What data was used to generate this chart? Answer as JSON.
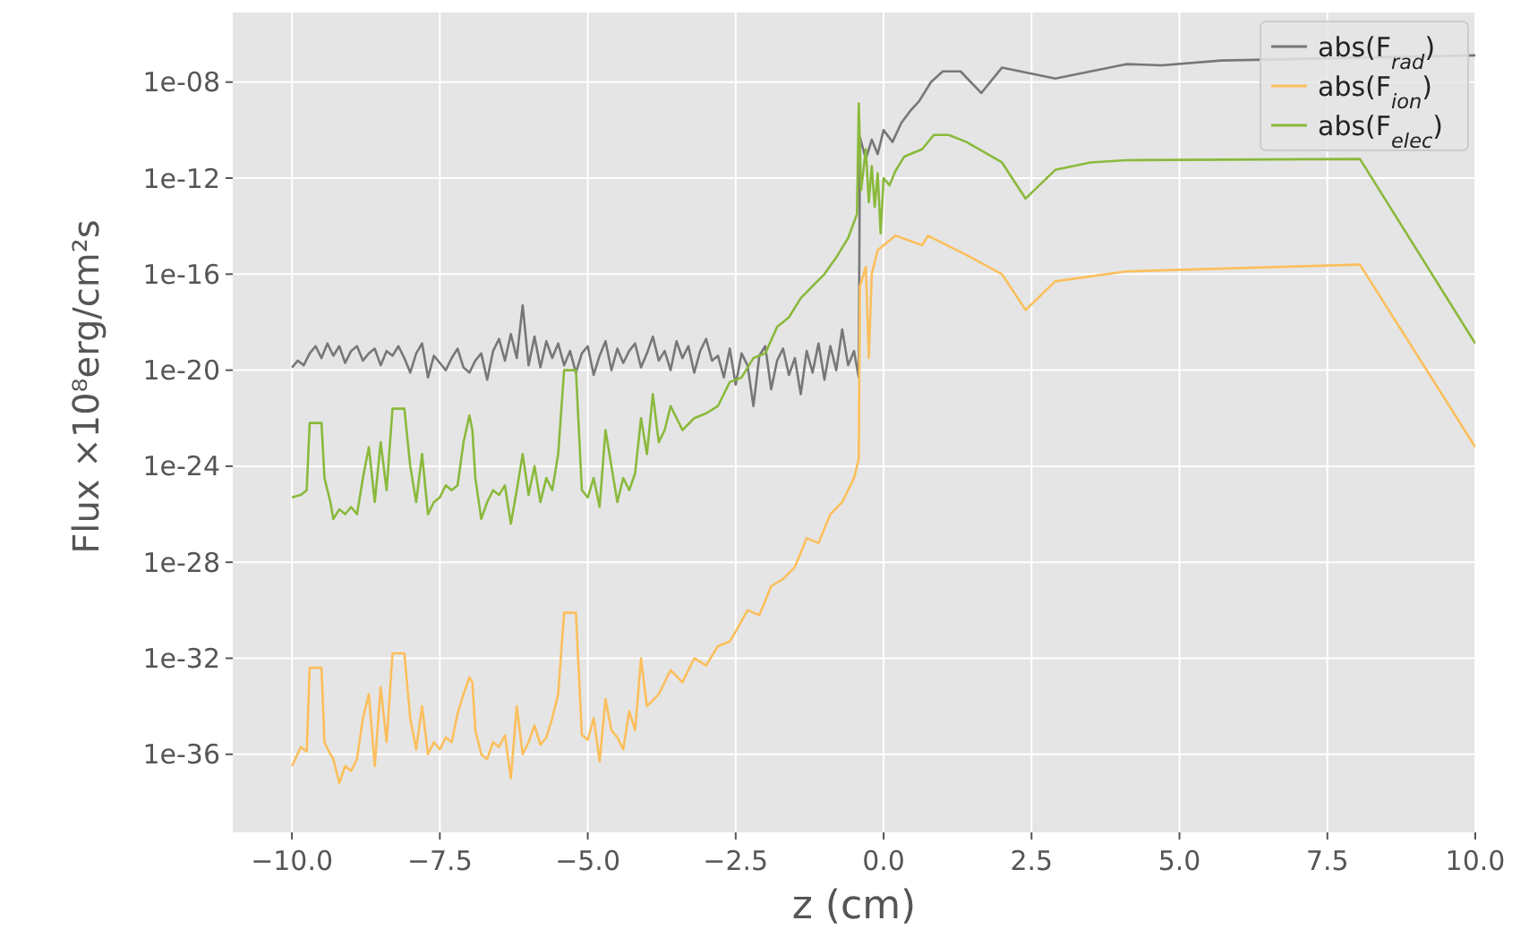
{
  "chart_data": {
    "type": "line",
    "xlabel": "z (cm)",
    "ylabel": "Flux ×10⁸erg/cm²s",
    "log": "y",
    "grid": true,
    "legend": "top right",
    "xlim": [
      -11,
      10
    ],
    "xticks": [
      {
        "value": -10,
        "label": "−10.0"
      },
      {
        "value": -7.5,
        "label": "−7.5"
      },
      {
        "value": -5,
        "label": "−5.0"
      },
      {
        "value": -2.5,
        "label": "−2.5"
      },
      {
        "value": 0,
        "label": "0.0"
      },
      {
        "value": 2.5,
        "label": "2.5"
      },
      {
        "value": 5,
        "label": "5.0"
      },
      {
        "value": 7.5,
        "label": "7.5"
      },
      {
        "value": 10,
        "label": "10.0"
      }
    ],
    "ylim": [
      5.6e-40,
      7.9e-06
    ],
    "yticks": [
      {
        "value": 1e-36,
        "label": "1e-36"
      },
      {
        "value": 1e-32,
        "label": "1e-32"
      },
      {
        "value": 1e-28,
        "label": "1e-28"
      },
      {
        "value": 1e-24,
        "label": "1e-24"
      },
      {
        "value": 1e-20,
        "label": "1e-20"
      },
      {
        "value": 1e-16,
        "label": "1e-16"
      },
      {
        "value": 1e-12,
        "label": "1e-12"
      },
      {
        "value": 1e-08,
        "label": "1e-08"
      }
    ],
    "series": [
      {
        "name": "abs(F$_{rad}$)",
        "color": "#777777",
        "x": [
          -10,
          -9.9,
          -9.8,
          -9.7,
          -9.6,
          -9.5,
          -9.4,
          -9.3,
          -9.2,
          -9.1,
          -9.0,
          -8.9,
          -8.8,
          -8.7,
          -8.6,
          -8.5,
          -8.4,
          -8.3,
          -8.2,
          -8.1,
          -8.0,
          -7.9,
          -7.8,
          -7.7,
          -7.6,
          -7.5,
          -7.4,
          -7.3,
          -7.2,
          -7.1,
          -7.0,
          -6.9,
          -6.8,
          -6.7,
          -6.6,
          -6.5,
          -6.4,
          -6.3,
          -6.2,
          -6.1,
          -6.0,
          -5.9,
          -5.8,
          -5.7,
          -5.6,
          -5.5,
          -5.4,
          -5.3,
          -5.2,
          -5.1,
          -5.0,
          -4.9,
          -4.8,
          -4.7,
          -4.6,
          -4.5,
          -4.4,
          -4.3,
          -4.2,
          -4.1,
          -4.0,
          -3.9,
          -3.8,
          -3.7,
          -3.6,
          -3.5,
          -3.4,
          -3.3,
          -3.2,
          -3.1,
          -3.0,
          -2.9,
          -2.8,
          -2.7,
          -2.6,
          -2.5,
          -2.4,
          -2.3,
          -2.2,
          -2.1,
          -2.0,
          -1.9,
          -1.8,
          -1.7,
          -1.6,
          -1.5,
          -1.4,
          -1.3,
          -1.2,
          -1.1,
          -1.0,
          -0.9,
          -0.8,
          -0.7,
          -0.6,
          -0.5,
          -0.42,
          -0.4,
          -0.3,
          -0.2,
          -0.1,
          0.0,
          0.15,
          0.3,
          0.45,
          0.6,
          0.8,
          1.0,
          1.3,
          1.65,
          2.0,
          2.9,
          4.1,
          4.7,
          5.7,
          10
        ],
        "values": [
          1.3e-20,
          2.5e-20,
          1.6e-20,
          5e-20,
          1e-19,
          3.2e-20,
          1.3e-19,
          4e-20,
          1e-19,
          2e-20,
          6.3e-20,
          1e-19,
          2.5e-20,
          5e-20,
          7.9e-20,
          1.6e-20,
          6.3e-20,
          4e-20,
          1e-19,
          3.2e-20,
          7.9e-21,
          5e-20,
          1.3e-19,
          5e-21,
          4e-20,
          2e-20,
          1e-20,
          3.2e-20,
          7.9e-20,
          1.3e-20,
          7.9e-21,
          2.5e-20,
          5e-20,
          4e-21,
          6.3e-20,
          2e-19,
          2.5e-20,
          3.2e-19,
          3.2e-20,
          5e-18,
          1.6e-20,
          2.5e-19,
          1.3e-20,
          1.6e-19,
          3.2e-20,
          1.3e-19,
          1.6e-20,
          6.3e-20,
          7.9e-21,
          5e-20,
          1e-19,
          6.3e-21,
          4e-20,
          1.6e-19,
          1e-20,
          7.9e-20,
          2e-20,
          6.3e-20,
          1.3e-19,
          1.3e-20,
          5e-20,
          2.5e-19,
          2.5e-20,
          6.3e-20,
          1e-20,
          1.6e-19,
          3.2e-20,
          1e-19,
          7.9e-21,
          6.3e-20,
          2e-19,
          2.5e-20,
          4e-20,
          5e-21,
          7.9e-20,
          2.5e-21,
          5e-20,
          1.6e-20,
          3.2e-22,
          4e-20,
          1e-19,
          1.6e-21,
          2.5e-20,
          7.9e-20,
          6.3e-21,
          3.2e-20,
          1e-21,
          6.3e-20,
          7.9e-21,
          1.3e-19,
          4e-21,
          1e-19,
          1e-20,
          5e-19,
          1.6e-20,
          6.3e-20,
          5e-21,
          5e-11,
          6.3e-12,
          4e-11,
          1e-11,
          1e-10,
          3.2e-11,
          2e-10,
          6.3e-10,
          1.6e-09,
          1e-08,
          2.8e-08,
          2.8e-08,
          3.5e-09,
          4e-08,
          1.4e-08,
          5.6e-08,
          5e-08,
          7.9e-08,
          1.3e-07
        ]
      },
      {
        "name": "abs(F$_{ion}$)",
        "color": "#fbbf5c",
        "x": [
          -10,
          -9.85,
          -9.75,
          -9.7,
          -9.5,
          -9.45,
          -9.35,
          -9.3,
          -9.2,
          -9.1,
          -9.0,
          -8.9,
          -8.8,
          -8.7,
          -8.6,
          -8.5,
          -8.4,
          -8.3,
          -8.1,
          -8.0,
          -7.9,
          -7.8,
          -7.7,
          -7.6,
          -7.5,
          -7.4,
          -7.3,
          -7.2,
          -7.1,
          -7.0,
          -6.95,
          -6.9,
          -6.8,
          -6.7,
          -6.6,
          -6.5,
          -6.4,
          -6.3,
          -6.2,
          -6.1,
          -6.0,
          -5.9,
          -5.8,
          -5.7,
          -5.6,
          -5.5,
          -5.4,
          -5.2,
          -5.1,
          -5.0,
          -4.9,
          -4.8,
          -4.7,
          -4.6,
          -4.5,
          -4.4,
          -4.3,
          -4.2,
          -4.1,
          -4.0,
          -3.8,
          -3.6,
          -3.4,
          -3.2,
          -3.0,
          -2.8,
          -2.6,
          -2.5,
          -2.3,
          -2.1,
          -1.9,
          -1.7,
          -1.5,
          -1.3,
          -1.1,
          -0.9,
          -0.7,
          -0.5,
          -0.42,
          -0.4,
          -0.3,
          -0.25,
          -0.2,
          -0.1,
          0.1,
          0.2,
          0.65,
          0.75,
          1.4,
          2.0,
          2.4,
          2.9,
          4.1,
          8.05,
          10
        ],
        "values": [
          3.2e-37,
          2e-36,
          1.3e-36,
          4e-33,
          4e-33,
          3.2e-36,
          1e-36,
          6.3e-37,
          6.3e-38,
          3.2e-37,
          2e-37,
          6.3e-37,
          3.2e-35,
          3.2e-34,
          3.2e-37,
          6.3e-34,
          3.2e-36,
          1.6e-32,
          1.6e-32,
          3.2e-35,
          1.6e-36,
          1e-34,
          1e-36,
          3.2e-36,
          1.6e-36,
          5e-36,
          3.2e-36,
          5e-35,
          3.2e-34,
          1.6e-33,
          1e-33,
          1e-35,
          1e-36,
          6.3e-37,
          3.2e-36,
          2e-36,
          6.3e-36,
          1e-37,
          1e-34,
          1e-36,
          3.2e-36,
          1.6e-35,
          2.5e-36,
          5e-36,
          3.2e-35,
          3.2e-34,
          7.9e-31,
          7.9e-31,
          6.3e-36,
          4e-36,
          3.2e-35,
          5e-37,
          2e-34,
          1e-35,
          5e-36,
          1.6e-36,
          6.3e-35,
          1e-35,
          1e-32,
          1e-34,
          3.2e-34,
          3.2e-33,
          1e-33,
          1e-32,
          5e-33,
          3.2e-32,
          5e-32,
          1.3e-31,
          1e-30,
          6.3e-31,
          1e-29,
          2e-29,
          6.3e-29,
          1e-27,
          6.3e-28,
          1e-26,
          3.2e-26,
          3.2e-25,
          2e-24,
          3.2e-17,
          2e-16,
          3.2e-20,
          1e-16,
          1e-15,
          2.5e-15,
          4e-15,
          1.6e-15,
          4e-15,
          6.3e-16,
          1e-16,
          3.2e-18,
          5e-17,
          1.3e-16,
          2.5e-16,
          6.3e-24
        ]
      },
      {
        "name": "abs(F$_{elec}$)",
        "color": "#8ab93c",
        "x": [
          -10,
          -9.85,
          -9.75,
          -9.7,
          -9.5,
          -9.45,
          -9.35,
          -9.3,
          -9.2,
          -9.1,
          -9.0,
          -8.9,
          -8.8,
          -8.7,
          -8.6,
          -8.5,
          -8.4,
          -8.3,
          -8.1,
          -8.0,
          -7.9,
          -7.8,
          -7.7,
          -7.6,
          -7.5,
          -7.4,
          -7.3,
          -7.2,
          -7.1,
          -7.0,
          -6.95,
          -6.9,
          -6.8,
          -6.7,
          -6.6,
          -6.5,
          -6.4,
          -6.3,
          -6.2,
          -6.1,
          -6.0,
          -5.9,
          -5.8,
          -5.7,
          -5.6,
          -5.5,
          -5.4,
          -5.2,
          -5.1,
          -5.0,
          -4.9,
          -4.8,
          -4.7,
          -4.6,
          -4.5,
          -4.4,
          -4.3,
          -4.2,
          -4.1,
          -4.0,
          -3.9,
          -3.8,
          -3.7,
          -3.6,
          -3.4,
          -3.2,
          -3.0,
          -2.8,
          -2.6,
          -2.4,
          -2.2,
          -2.0,
          -1.8,
          -1.6,
          -1.4,
          -1.2,
          -1.0,
          -0.8,
          -0.6,
          -0.45,
          -0.42,
          -0.38,
          -0.3,
          -0.25,
          -0.2,
          -0.15,
          -0.1,
          -0.05,
          0.0,
          0.1,
          0.2,
          0.35,
          0.65,
          0.85,
          1.1,
          1.4,
          2.0,
          2.4,
          2.9,
          3.5,
          4.1,
          8.05,
          10
        ],
        "values": [
          5e-26,
          6.3e-26,
          1e-25,
          6.3e-23,
          6.3e-23,
          3.2e-25,
          3.2e-26,
          6.3e-27,
          1.6e-26,
          1e-26,
          2e-26,
          1e-26,
          3.2e-25,
          6.3e-24,
          3.2e-26,
          1e-23,
          1e-25,
          2.5e-22,
          2.5e-22,
          1e-24,
          3.2e-26,
          3.2e-24,
          1e-26,
          3.2e-26,
          5e-26,
          1.6e-25,
          1e-25,
          1.6e-25,
          1e-23,
          1.3e-22,
          3.2e-23,
          3.2e-25,
          6.3e-27,
          3.2e-26,
          1e-25,
          6.3e-26,
          1.6e-25,
          4e-27,
          1e-25,
          3.2e-24,
          6.3e-26,
          1e-24,
          3.2e-26,
          3.2e-25,
          1e-25,
          3.2e-24,
          1e-20,
          1e-20,
          1e-25,
          5e-26,
          3.2e-25,
          2e-26,
          3.2e-23,
          1e-24,
          3.2e-26,
          3.2e-25,
          1e-25,
          5e-25,
          1e-22,
          3.2e-24,
          1e-21,
          1e-23,
          3.2e-23,
          3.2e-22,
          3.2e-23,
          1e-22,
          1.6e-22,
          3.2e-22,
          3.2e-21,
          5e-21,
          3.2e-20,
          5e-20,
          6.3e-19,
          1.6e-18,
          1e-17,
          3.2e-17,
          1e-16,
          5e-16,
          3.2e-15,
          3.2e-14,
          1.3e-09,
          3.2e-13,
          1.6e-11,
          1e-13,
          3.2e-12,
          6.3e-14,
          1.6e-12,
          5e-15,
          1e-12,
          5e-13,
          2e-12,
          7.9e-12,
          1.6e-11,
          6.3e-11,
          6.3e-11,
          3.2e-11,
          4.5e-12,
          1.4e-13,
          2.2e-12,
          4.5e-12,
          5.6e-12,
          6.3e-12,
          1.3e-19
        ]
      }
    ]
  }
}
